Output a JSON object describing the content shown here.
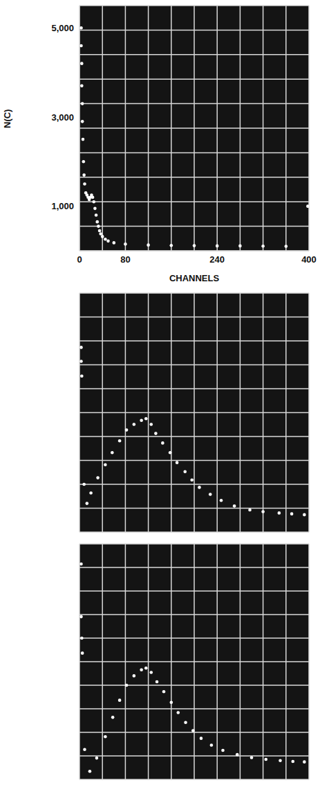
{
  "chart_data": [
    {
      "type": "scatter",
      "x_label": "CHANNELS",
      "y_label": "N(C)",
      "color": "#ffffff",
      "marker": "circle",
      "grid": true,
      "xlim": [
        0,
        400
      ],
      "xticks": [
        0,
        80,
        240,
        400
      ],
      "ylim": [
        0,
        5500
      ],
      "yticks": [
        {
          "value": 1000,
          "label": "1,000"
        },
        {
          "value": 3000,
          "label": "3,000"
        },
        {
          "value": 5000,
          "label": "5,000"
        }
      ],
      "x": [
        3,
        3,
        4,
        4,
        5,
        5,
        6,
        7,
        8,
        9,
        11,
        13,
        15,
        17,
        19,
        21,
        23,
        25,
        27,
        29,
        31,
        33,
        35,
        37,
        40,
        45,
        50,
        60,
        80,
        120,
        160,
        200,
        240,
        280,
        320,
        360,
        398
      ],
      "values": [
        5000,
        4600,
        4200,
        3700,
        3300,
        2900,
        2500,
        2000,
        1700,
        1500,
        1300,
        1250,
        1200,
        1150,
        1200,
        1250,
        1200,
        1100,
        950,
        800,
        650,
        550,
        450,
        380,
        320,
        260,
        220,
        180,
        150,
        130,
        120,
        115,
        110,
        110,
        105,
        100,
        1000
      ]
    },
    {
      "type": "scatter",
      "color": "#ffffff",
      "marker": "circle",
      "grid": true,
      "tick_labels": false,
      "xlim": [
        0,
        400
      ],
      "ylim": [
        0,
        5500
      ],
      "x": [
        3,
        3,
        4,
        8,
        13,
        20,
        32,
        45,
        57,
        70,
        82,
        95,
        108,
        116,
        125,
        133,
        145,
        158,
        170,
        184,
        196,
        209,
        228,
        247,
        270,
        297,
        320,
        348,
        370,
        392
      ],
      "values": [
        4250,
        3930,
        3590,
        1100,
        660,
        900,
        1250,
        1550,
        1830,
        2100,
        2350,
        2480,
        2570,
        2610,
        2480,
        2270,
        2050,
        1830,
        1600,
        1390,
        1200,
        1030,
        870,
        730,
        600,
        510,
        470,
        440,
        420,
        400
      ]
    },
    {
      "type": "scatter",
      "color": "#ffffff",
      "marker": "circle",
      "grid": true,
      "tick_labels": false,
      "xlim": [
        0,
        400
      ],
      "ylim": [
        0,
        5500
      ],
      "x": [
        3,
        3,
        4,
        5,
        9,
        18,
        30,
        45,
        58,
        70,
        82,
        95,
        108,
        116,
        125,
        135,
        147,
        160,
        172,
        185,
        198,
        212,
        230,
        250,
        275,
        300,
        325,
        350,
        372,
        392
      ],
      "values": [
        5030,
        3800,
        3300,
        2950,
        700,
        190,
        500,
        1000,
        1450,
        1850,
        2200,
        2420,
        2560,
        2600,
        2500,
        2280,
        2050,
        1800,
        1560,
        1330,
        1140,
        960,
        800,
        680,
        580,
        510,
        470,
        440,
        420,
        410
      ]
    }
  ]
}
